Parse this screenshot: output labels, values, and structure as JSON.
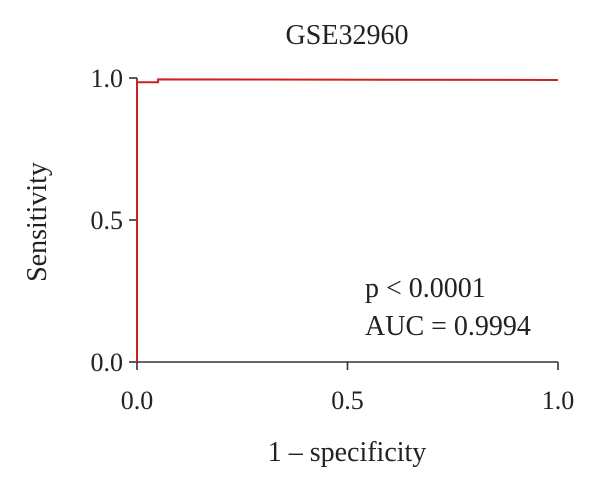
{
  "chart_data": {
    "type": "line",
    "title": "GSE32960",
    "xlabel": "1 – specificity",
    "ylabel": "Sensitivity",
    "xlim": [
      0.0,
      1.0
    ],
    "ylim": [
      0.0,
      1.0
    ],
    "x_ticks": [
      "0.0",
      "0.5",
      "1.0"
    ],
    "y_ticks": [
      "0.0",
      "0.5",
      "1.0"
    ],
    "grid": false,
    "series": [
      {
        "color": "#cc2222",
        "x": [
          0.0,
          0.0,
          0.05,
          0.05,
          1.0
        ],
        "y": [
          0.0,
          0.985,
          0.985,
          0.995,
          0.993
        ]
      }
    ],
    "annotations": [
      "p < 0.0001",
      "AUC = 0.9994"
    ]
  }
}
